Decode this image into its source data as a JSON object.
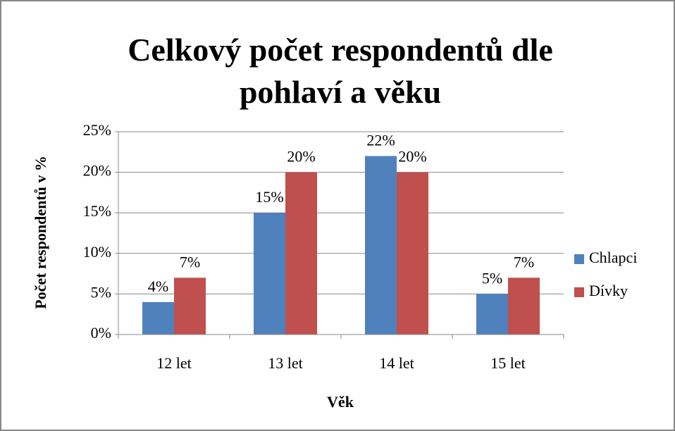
{
  "chart_data": {
    "type": "bar",
    "title": "Celkový počet respondentů dle pohlaví a věku",
    "x_label": "Věk",
    "y_label": "Počet respondentů v %",
    "categories": [
      "12 let",
      "13 let",
      "14 let",
      "15 let"
    ],
    "series": [
      {
        "name": "Chlapci",
        "color": "#4f81bd",
        "values": [
          4,
          15,
          22,
          5
        ],
        "value_labels": [
          "4%",
          "15%",
          "22%",
          "5%"
        ]
      },
      {
        "name": "Dívky",
        "color": "#c0504d",
        "values": [
          7,
          20,
          20,
          7
        ],
        "value_labels": [
          "7%",
          "20%",
          "20%",
          "7%"
        ]
      }
    ],
    "ylim": [
      0,
      25
    ],
    "yticks": [
      {
        "value": 0,
        "label": "0%"
      },
      {
        "value": 5,
        "label": "5%"
      },
      {
        "value": 10,
        "label": "10%"
      },
      {
        "value": 15,
        "label": "15%"
      },
      {
        "value": 20,
        "label": "20%"
      },
      {
        "value": 25,
        "label": "25%"
      }
    ],
    "grid": true,
    "legend": "right"
  }
}
